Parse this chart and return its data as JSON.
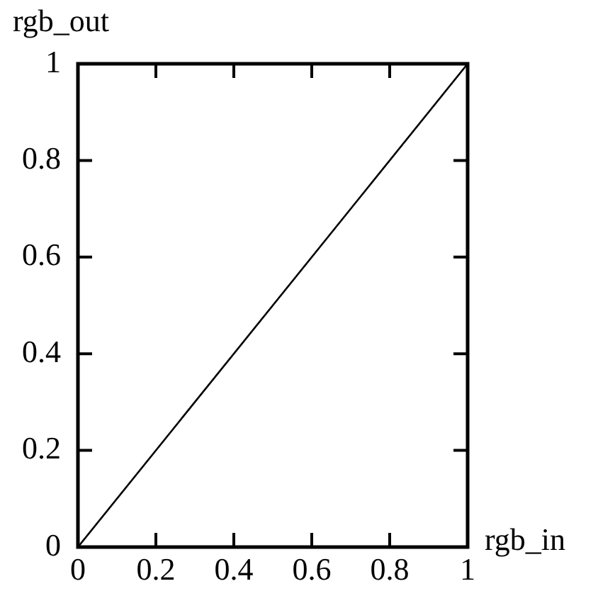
{
  "chart_data": {
    "type": "line",
    "xlabel": "rgb_in",
    "ylabel": "rgb_out",
    "x": [
      0,
      1
    ],
    "series": [
      {
        "color": "#000000",
        "values": [
          0,
          1
        ]
      }
    ],
    "xlim": [
      0,
      1
    ],
    "ylim": [
      0,
      1
    ],
    "xticks": [
      0,
      0.2,
      0.4,
      0.6,
      0.8,
      1
    ],
    "yticks": [
      0,
      0.2,
      0.4,
      0.6,
      0.8,
      1
    ],
    "grid": false,
    "legend": false,
    "marker": "none",
    "line_style": "solid"
  }
}
